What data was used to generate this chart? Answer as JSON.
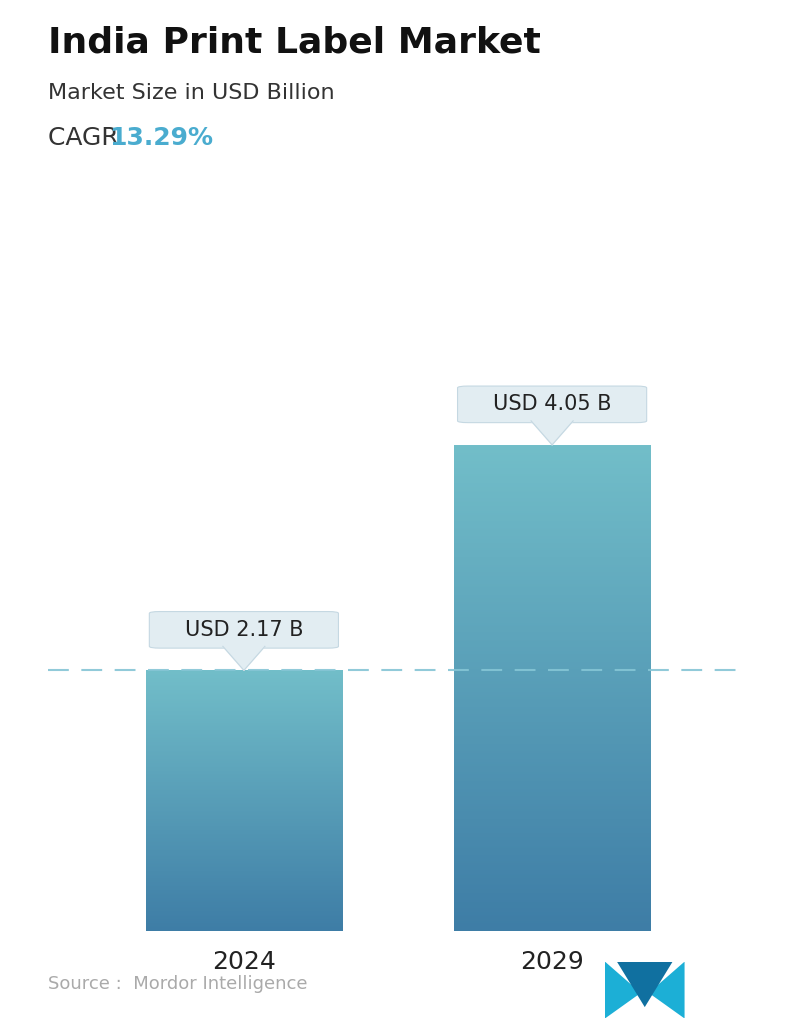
{
  "title": "India Print Label Market",
  "subtitle": "Market Size in USD Billion",
  "cagr_label": "CAGR  ",
  "cagr_value": "13.29%",
  "cagr_color": "#4AACCF",
  "categories": [
    "2024",
    "2029"
  ],
  "values": [
    2.17,
    4.05
  ],
  "bar_labels": [
    "USD 2.17 B",
    "USD 4.05 B"
  ],
  "bar_top_color": "#72BEC9",
  "bar_bottom_color": "#3E7DA6",
  "dashed_line_color": "#85C5D5",
  "dashed_line_value": 2.17,
  "source_text": "Source :  Mordor Intelligence",
  "source_color": "#AAAAAA",
  "background_color": "#FFFFFF",
  "title_fontsize": 26,
  "subtitle_fontsize": 16,
  "cagr_fontsize": 18,
  "tick_fontsize": 18,
  "label_fontsize": 15,
  "source_fontsize": 13,
  "ylim_max": 5.0,
  "bar_width": 0.28,
  "positions": [
    0.28,
    0.72
  ]
}
